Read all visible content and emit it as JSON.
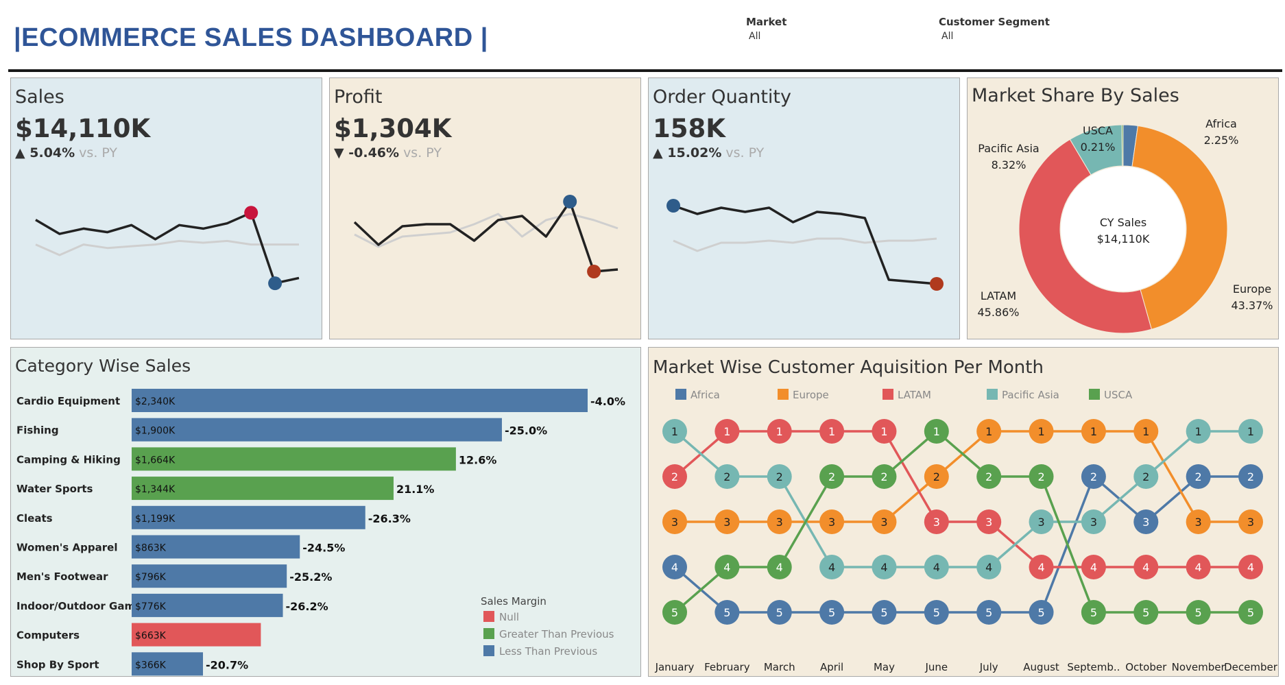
{
  "header": {
    "title": "|ECOMMERCE SALES DASHBOARD |"
  },
  "filters": [
    {
      "label": "Market",
      "value": "All"
    },
    {
      "label": "Customer Segment",
      "value": "All"
    }
  ],
  "kpis": [
    {
      "title": "Sales",
      "value": "$14,110K",
      "arrow": "▲",
      "delta": "5.04%",
      "vs": "vs. PY"
    },
    {
      "title": "Profit",
      "value": "$1,304K",
      "arrow": "▼",
      "delta": "-0.46%",
      "vs": "vs. PY"
    },
    {
      "title": "Order Quantity",
      "value": "158K",
      "arrow": "▲",
      "delta": "15.02%",
      "vs": "vs. PY"
    }
  ],
  "colors": {
    "blue_bar": "#4e79a7",
    "green_bar": "#59a14f",
    "red_bar": "#e15759",
    "africa": "#4e79a7",
    "europe": "#f28e2b",
    "latam": "#e15759",
    "pacific_asia": "#76b7b2",
    "usca": "#59a14f",
    "high_point": "#c8143c",
    "low_point": "#2e5c8a",
    "low_point_profit": "#b03a1e"
  },
  "chart_data": [
    {
      "type": "line",
      "name": "sales-sparkline",
      "cy": [
        78,
        70,
        73,
        71,
        75,
        67,
        75,
        73,
        76,
        82,
        42,
        45
      ],
      "py": [
        64,
        58,
        64,
        62,
        63,
        64,
        66,
        65,
        66,
        64,
        64,
        64
      ],
      "ylim": [
        30,
        100
      ]
    },
    {
      "type": "line",
      "name": "profit-sparkline",
      "cy": [
        80,
        69,
        78,
        79,
        79,
        71,
        81,
        83,
        73,
        90,
        56,
        57
      ],
      "py": [
        74,
        68,
        73,
        74,
        75,
        79,
        84,
        73,
        81,
        84,
        81,
        77
      ],
      "ylim": [
        40,
        100
      ]
    },
    {
      "type": "line",
      "name": "order-quantity-sparkline",
      "cy": [
        88,
        84,
        87,
        85,
        87,
        80,
        85,
        84,
        82,
        52,
        51,
        50
      ],
      "py": [
        71,
        66,
        70,
        70,
        71,
        70,
        72,
        72,
        70,
        71,
        71,
        72
      ],
      "ylim": [
        40,
        100
      ]
    },
    {
      "type": "pie",
      "name": "market-share-donut",
      "title": "Market Share By Sales",
      "center_label": "CY Sales",
      "center_value": "$14,110K",
      "slices": [
        {
          "label": "Africa",
          "value": 2.25,
          "display": "2.25%"
        },
        {
          "label": "Europe",
          "value": 43.37,
          "display": "43.37%"
        },
        {
          "label": "LATAM",
          "value": 45.86,
          "display": "45.86%"
        },
        {
          "label": "Pacific Asia",
          "value": 8.32,
          "display": "8.32%"
        },
        {
          "label": "USCA",
          "value": 0.21,
          "display": "0.21%"
        }
      ]
    },
    {
      "type": "bar",
      "name": "category-wise-sales",
      "title": "Category Wise Sales",
      "categories": [
        "Cardio Equipment",
        "Fishing",
        "Camping & Hiking",
        "Water Sports",
        "Cleats",
        "Women's Apparel",
        "Men's Footwear",
        "Indoor/Outdoor Games",
        "Computers",
        "Shop By Sport"
      ],
      "values": [
        2340,
        1900,
        1664,
        1344,
        1199,
        863,
        796,
        776,
        663,
        366
      ],
      "value_labels": [
        "$2,340K",
        "$1,900K",
        "$1,664K",
        "$1,344K",
        "$1,199K",
        "$863K",
        "$796K",
        "$776K",
        "$663K",
        "$366K"
      ],
      "change_labels": [
        "-4.0%",
        "-25.0%",
        "12.6%",
        "21.1%",
        "-26.3%",
        "-24.5%",
        "-25.2%",
        "-26.2%",
        "",
        "-20.7%"
      ],
      "margin_status": [
        "less",
        "less",
        "greater",
        "greater",
        "less",
        "less",
        "less",
        "less",
        "null",
        "less"
      ],
      "xlim": [
        0,
        2340
      ],
      "legend": {
        "title": "Sales Margin",
        "items": [
          "Null",
          "Greater Than Previous",
          "Less Than Previous"
        ]
      }
    },
    {
      "type": "line",
      "name": "market-rank-bump-chart",
      "title": "Market Wise Customer Aquisition Per Month",
      "x": [
        "January",
        "February",
        "March",
        "April",
        "May",
        "June",
        "July",
        "August",
        "Septemb..",
        "October",
        "November",
        "December"
      ],
      "series": [
        {
          "name": "Africa",
          "ranks": [
            4,
            5,
            5,
            5,
            5,
            5,
            5,
            5,
            2,
            3,
            2,
            2
          ]
        },
        {
          "name": "Europe",
          "ranks": [
            3,
            3,
            3,
            3,
            3,
            2,
            1,
            1,
            1,
            1,
            3,
            3
          ]
        },
        {
          "name": "LATAM",
          "ranks": [
            2,
            1,
            1,
            1,
            1,
            3,
            3,
            4,
            4,
            4,
            4,
            4
          ]
        },
        {
          "name": "Pacific Asia",
          "ranks": [
            1,
            2,
            2,
            4,
            4,
            4,
            4,
            3,
            3,
            2,
            1,
            1
          ]
        },
        {
          "name": "USCA",
          "ranks": [
            5,
            4,
            4,
            2,
            2,
            1,
            2,
            2,
            5,
            5,
            5,
            5
          ]
        }
      ],
      "ylim": [
        1,
        5
      ]
    }
  ]
}
